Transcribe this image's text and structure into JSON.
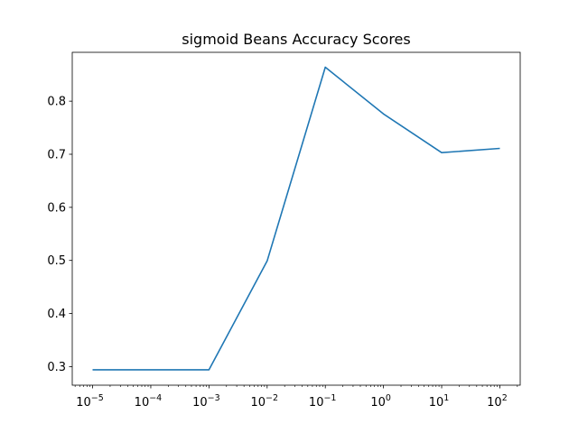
{
  "chart_data": {
    "type": "line",
    "title": "sigmoid Beans Accuracy Scores",
    "xlabel": "",
    "ylabel": "",
    "x_scale": "log",
    "x": [
      1e-05,
      0.0001,
      0.001,
      0.01,
      0.1,
      1,
      10,
      100
    ],
    "xticks": [
      {
        "base": "10",
        "exp": "−5"
      },
      {
        "base": "10",
        "exp": "−4"
      },
      {
        "base": "10",
        "exp": "−3"
      },
      {
        "base": "10",
        "exp": "−2"
      },
      {
        "base": "10",
        "exp": "−1"
      },
      {
        "base": "10",
        "exp": "0"
      },
      {
        "base": "10",
        "exp": "1"
      },
      {
        "base": "10",
        "exp": "2"
      }
    ],
    "yticks": [
      "0.3",
      "0.4",
      "0.5",
      "0.6",
      "0.7",
      "0.8"
    ],
    "ylim": [
      0.265,
      0.892
    ],
    "series": [
      {
        "color": "#1f77b4",
        "values": [
          0.294,
          0.294,
          0.294,
          0.499,
          0.864,
          0.776,
          0.703,
          0.711
        ]
      }
    ],
    "grid": false,
    "legend": "none"
  }
}
